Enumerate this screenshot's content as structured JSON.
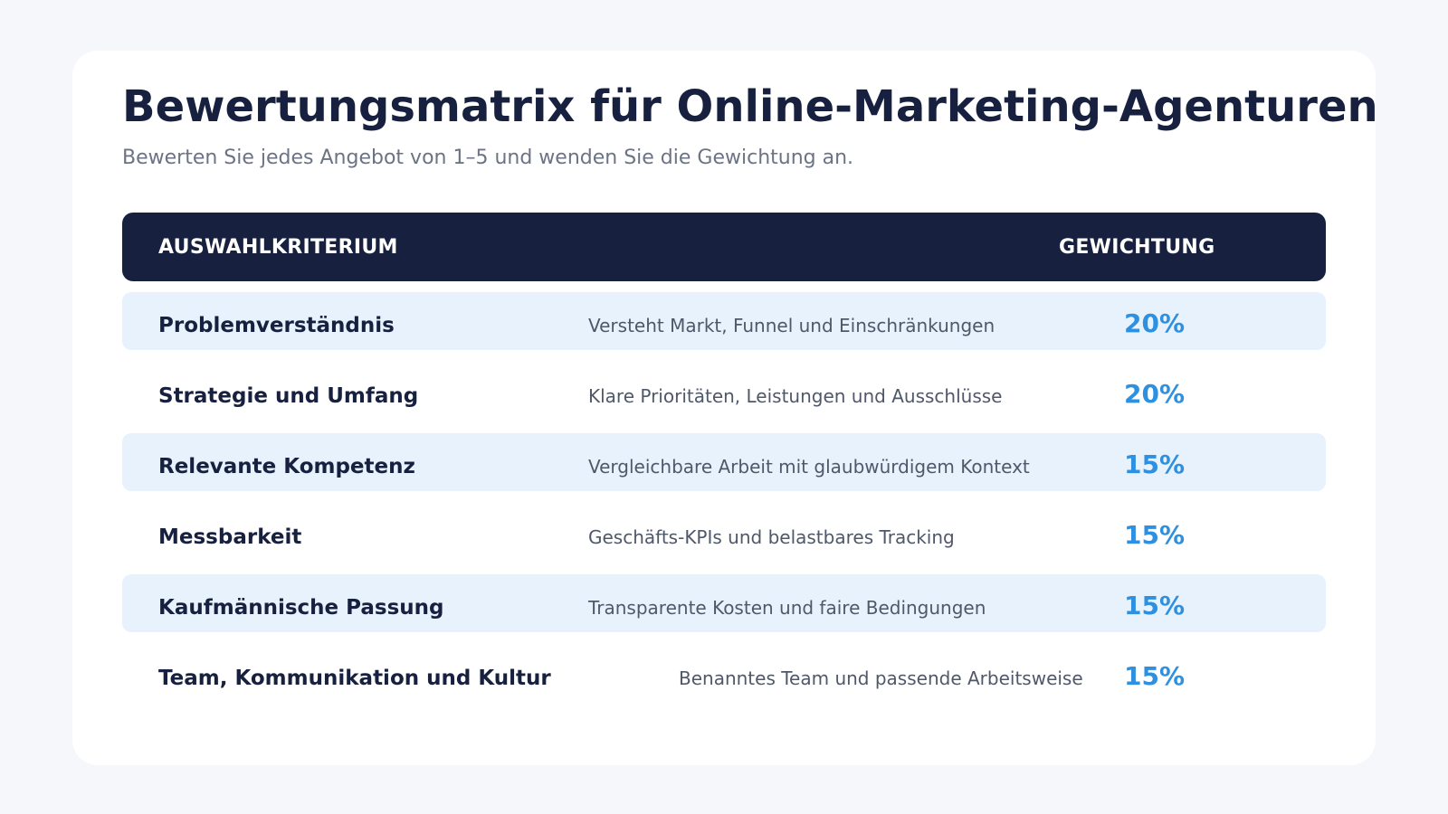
{
  "header": {
    "title": "Bewertungsmatrix für Online-Marketing-Agenturen",
    "subtitle": "Bewerten Sie jedes Angebot von 1–5 und wenden Sie die Gewichtung an."
  },
  "table": {
    "columns": {
      "criterion": "AUSWAHLKRITERIUM",
      "weight": "GEWICHTUNG"
    },
    "rows": [
      {
        "criterion": "Problemverständnis",
        "description": "Versteht Markt, Funnel und Einschränkungen",
        "weight": "20%"
      },
      {
        "criterion": "Strategie und Umfang",
        "description": "Klare Prioritäten, Leistungen und Ausschlüsse",
        "weight": "20%"
      },
      {
        "criterion": "Relevante Kompetenz",
        "description": "Vergleichbare Arbeit mit glaubwürdigem Kontext",
        "weight": "15%"
      },
      {
        "criterion": "Messbarkeit",
        "description": "Geschäfts-KPIs und belastbares Tracking",
        "weight": "15%"
      },
      {
        "criterion": "Kaufmännische Passung",
        "description": "Transparente Kosten und faire Bedingungen",
        "weight": "15%"
      },
      {
        "criterion": "Team, Kommunikation und Kultur",
        "description": "Benanntes Team und passende Arbeitsweise",
        "weight": "15%"
      }
    ]
  },
  "colors": {
    "header_bg": "#17213f",
    "row_shade": "#e7f2fd",
    "accent": "#2e90e0",
    "page_bg": "#f5f7fb"
  }
}
